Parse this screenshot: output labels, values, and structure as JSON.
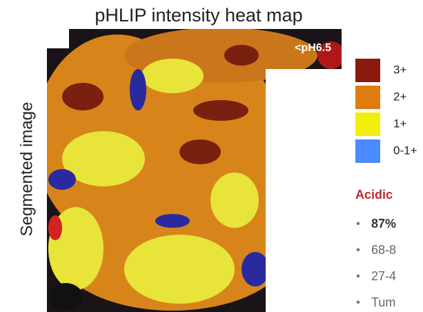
{
  "header": {
    "title": "pHLIP intensity heat map"
  },
  "image": {
    "side_label": "Segmented image",
    "overlay_label": "<pH6.5"
  },
  "legend": {
    "items": [
      {
        "label": "3+",
        "color": "#8b1a0e"
      },
      {
        "label": "2+",
        "color": "#e07b10"
      },
      {
        "label": "1+",
        "color": "#f2ef0a"
      },
      {
        "label": "0-1+",
        "color": "#4a8cff"
      }
    ]
  },
  "section": {
    "heading": "Acidic",
    "bullets": [
      "87%",
      "68-8",
      "27-4",
      "Tum"
    ]
  }
}
